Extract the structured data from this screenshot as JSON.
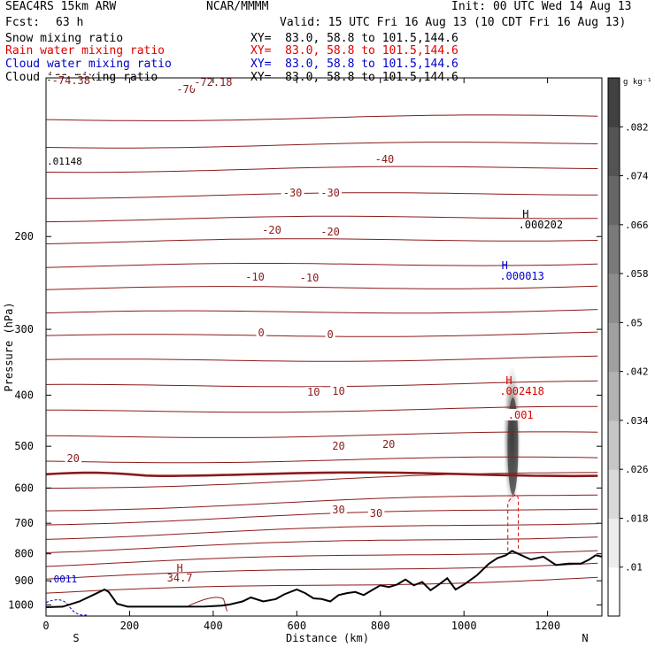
{
  "header": {
    "model": "SEAC4RS 15km ARW",
    "center": "NCAR/MMMM",
    "init": "Init: 00 UTC Wed 14 Aug 13",
    "fcst_label": "Fcst:",
    "fcst_value": "63 h",
    "valid": "Valid: 15 UTC Fri 16 Aug 13 (10 CDT Fri 16 Aug 13)"
  },
  "fields": [
    {
      "name": "Snow mixing ratio",
      "xy": "XY=  83.0, 58.8 to 101.5,144.6",
      "color": "#000000"
    },
    {
      "name": "Rain water mixing ratio",
      "xy": "XY=  83.0, 58.8 to 101.5,144.6",
      "color": "#e00000"
    },
    {
      "name": "Cloud water mixing ratio",
      "xy": "XY=  83.0, 58.8 to 101.5,144.6",
      "color": "#0000cc"
    },
    {
      "name": "Cloud ice mixing ratio",
      "xy": "XY=  83.0, 58.8 to 101.5,144.6",
      "color": "#000000"
    }
  ],
  "chart_data": {
    "type": "cross-section",
    "xlabel": "Distance (km)",
    "ylabel": "Pressure (hPa)",
    "xlim": [
      0,
      1330
    ],
    "ylim": [
      100,
      1050
    ],
    "y_scale": "log",
    "x_ticks": [
      0,
      200,
      400,
      600,
      800,
      1000,
      1200
    ],
    "y_ticks": [
      200,
      300,
      400,
      500,
      600,
      700,
      800,
      900,
      1000
    ],
    "end_labels": {
      "left": "S",
      "right": "N"
    },
    "colorbar": {
      "units": "g kg⁻¹",
      "ticks": [
        ".01",
        ".018",
        ".026",
        ".034",
        ".042",
        ".05",
        ".058",
        ".066",
        ".074",
        ".082"
      ]
    },
    "temperature_contours": {
      "color": "#8b1a1a",
      "levels": [
        -70,
        -60,
        -50,
        -40,
        -30,
        -20,
        -10,
        0,
        10,
        20,
        30
      ],
      "labels": [
        "-70",
        "-72.18",
        "-74.38",
        "-40",
        "-30",
        "-30",
        "-20",
        "-20",
        "-10",
        "-10",
        "0",
        "0",
        "10",
        "10",
        "20",
        "20",
        "20",
        "30",
        "30",
        "34.7",
        "H"
      ]
    },
    "terrain": {
      "x": [
        0,
        40,
        80,
        110,
        140,
        150,
        170,
        195,
        260,
        330,
        380,
        420,
        440,
        470,
        490,
        520,
        550,
        570,
        600,
        620,
        640,
        660,
        680,
        700,
        720,
        740,
        760,
        780,
        800,
        820,
        840,
        860,
        880,
        900,
        920,
        940,
        960,
        980,
        1000,
        1030,
        1060,
        1080,
        1100,
        1115,
        1130,
        1160,
        1190,
        1220,
        1250,
        1280,
        1300,
        1315,
        1330
      ],
      "p": [
        1010,
        1008,
        985,
        960,
        935,
        945,
        995,
        1008,
        1008,
        1008,
        1007,
        1003,
        998,
        985,
        968,
        985,
        975,
        955,
        935,
        950,
        972,
        975,
        985,
        958,
        950,
        945,
        958,
        938,
        918,
        925,
        915,
        895,
        918,
        905,
        938,
        915,
        890,
        935,
        915,
        880,
        835,
        815,
        805,
        790,
        800,
        820,
        810,
        840,
        835,
        835,
        820,
        805,
        810
      ]
    },
    "annotations": [
      {
        "text": "H",
        "value": ".000202",
        "field": "Snow mixing ratio"
      },
      {
        "text": "H",
        "value": ".000013",
        "field": "Cloud water mixing ratio"
      },
      {
        "text": "H",
        "value": ".002418",
        "field": "Rain water mixing ratio"
      },
      {
        "text": ".001",
        "field": "Rain water mixing ratio"
      },
      {
        "text": ".0011",
        "field": "Cloud water mixing ratio"
      },
      {
        "text": ".01148",
        "field": "Snow mixing ratio"
      }
    ]
  }
}
